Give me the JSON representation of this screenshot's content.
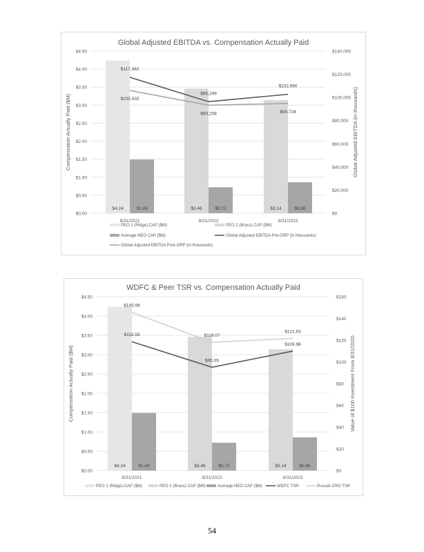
{
  "page_number": "54",
  "colors": {
    "peo1": "#e6e6e6",
    "peo2": "#d9d9d9",
    "neo": "#a6a6a6",
    "dark_line": "#595959",
    "light_line": "#a6a6a6",
    "lighter_line": "#d0d0d0",
    "grid": "#e4e4e4",
    "text": "#595959"
  },
  "chart_data": [
    {
      "type": "bar",
      "title": "Global Adjusted EBITDA vs. Compensation Actually Paid",
      "categories": [
        "8/31/2021",
        "8/31/2022",
        "8/31/2023"
      ],
      "ylabel": "Compensation Actually Paid ($M)",
      "y2label": "Global Adjusted EBITDA (in thousands)",
      "ylim": [
        0,
        4.5
      ],
      "y2lim": [
        0,
        140000
      ],
      "yticks": [
        "$0.00",
        "$0.50",
        "$1.00",
        "$1.50",
        "$2.00",
        "$2.50",
        "$3.00",
        "$3.50",
        "$4.00",
        "$4.50"
      ],
      "y2ticks": [
        "$0",
        "$20,000",
        "$40,000",
        "$60,000",
        "$80,000",
        "$100,000",
        "$120,000",
        "$140,000"
      ],
      "grid": true,
      "legend_placement": "bottom",
      "bars": [
        {
          "name": "PEO 1 (Ridge) CAP ($M)",
          "values": [
            4.24,
            null,
            null
          ],
          "labels": [
            "$4.24",
            "",
            ""
          ]
        },
        {
          "name": "PEO 2 (Brass) CAP ($M)",
          "values": [
            null,
            3.46,
            3.14
          ],
          "labels": [
            "",
            "$3.46",
            "$3.14"
          ]
        },
        {
          "name": "Average NEO CAP ($M)",
          "values": [
            1.49,
            0.72,
            0.86
          ],
          "labels": [
            "$1.49",
            "$0.72",
            "$0.86"
          ]
        }
      ],
      "lines": [
        {
          "name": "Global Adjusted EBITDA Pre-GRP (in thousands)",
          "values": [
            117362,
            96299,
            102680
          ],
          "labels": [
            "$117,362",
            "$96,299",
            "$102,680"
          ]
        },
        {
          "name": "Global Adjusted EBITDA Post-GRP (in thousands)",
          "values": [
            105932,
            93258,
            94734
          ],
          "labels": [
            "$105,932",
            "$93,258",
            "$94,734"
          ]
        }
      ]
    },
    {
      "type": "bar",
      "title": "WDFC & Peer TSR vs. Compensation Actually Paid",
      "categories": [
        "8/31/2021",
        "8/31/2022",
        "8/31/2023"
      ],
      "ylabel": "Compensation Actually Paid ($M)",
      "y2label": "Value of $100 Investment From 8/31/2020",
      "ylim": [
        0,
        4.5
      ],
      "y2lim": [
        0,
        160
      ],
      "yticks": [
        "$0.00",
        "$0.50",
        "$1.00",
        "$1.50",
        "$2.00",
        "$2.50",
        "$3.00",
        "$3.50",
        "$4.00",
        "$4.50"
      ],
      "y2ticks": [
        "$0",
        "$20",
        "$40",
        "$60",
        "$80",
        "$100",
        "$120",
        "$140",
        "$160"
      ],
      "grid": true,
      "legend_placement": "bottom",
      "bars": [
        {
          "name": "PEO 1 (Ridge) CAP ($M)",
          "values": [
            4.24,
            null,
            null
          ],
          "labels": [
            "$4.24",
            "",
            ""
          ]
        },
        {
          "name": "PEO 2 (Brass) CAP ($M)",
          "values": [
            null,
            3.46,
            3.14
          ],
          "labels": [
            "",
            "$3.46",
            "$3.14"
          ]
        },
        {
          "name": "Average NEO CAP ($M)",
          "values": [
            1.49,
            0.72,
            0.86
          ],
          "labels": [
            "$1.49",
            "$0.72",
            "$0.86"
          ]
        }
      ],
      "lines": [
        {
          "name": "WDFC TSR",
          "values": [
            118.59,
            95.05,
            109.96
          ],
          "labels": [
            "$118.59",
            "$95.05",
            "$109.96"
          ]
        },
        {
          "name": "Russell 2000 TSR",
          "values": [
            145.58,
            118.07,
            121.63
          ],
          "labels": [
            "$145.58",
            "$118.07",
            "$121.63"
          ]
        }
      ]
    }
  ]
}
